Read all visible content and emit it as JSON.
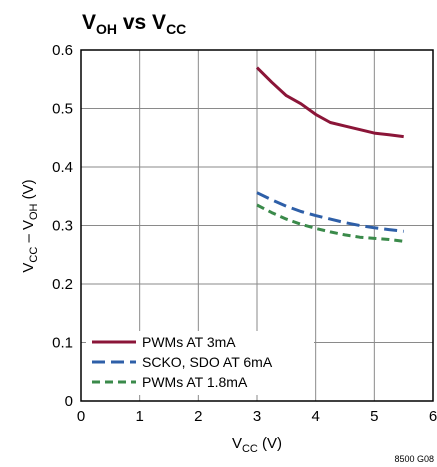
{
  "chart_data": {
    "type": "line",
    "title": "VOH vs VCC",
    "title_parts": {
      "base1": "V",
      "sub1": "OH",
      "mid": " vs ",
      "base2": "V",
      "sub2": "CC"
    },
    "xlabel": "VCC (V)",
    "xlabel_parts": {
      "base": "V",
      "sub": "CC",
      "tail": " (V)"
    },
    "ylabel": "VCC – VOH (V)",
    "ylabel_parts": {
      "b1": "V",
      "s1": "CC",
      "mid": " – V",
      "s2": "OH",
      "tail": " (V)"
    },
    "xlim": [
      0,
      6
    ],
    "ylim": [
      0,
      0.6
    ],
    "x_ticks": [
      "0",
      "1",
      "2",
      "3",
      "4",
      "5",
      "6"
    ],
    "y_ticks": [
      "0",
      "0.1",
      "0.2",
      "0.3",
      "0.4",
      "0.5",
      "0.6"
    ],
    "grid": true,
    "legend_position": "bottom-left",
    "series": [
      {
        "name": "PWMs AT 3mA",
        "color": "#8b1538",
        "style": "solid",
        "x": [
          3.0,
          3.25,
          3.5,
          3.75,
          4.0,
          4.25,
          4.5,
          4.75,
          5.0,
          5.25,
          5.5
        ],
        "y": [
          0.57,
          0.545,
          0.522,
          0.508,
          0.49,
          0.476,
          0.47,
          0.464,
          0.458,
          0.455,
          0.452
        ]
      },
      {
        "name": "SCKO, SDO AT 6mA",
        "color": "#2e5fa8",
        "style": "dash",
        "x": [
          3.0,
          3.25,
          3.5,
          3.75,
          4.0,
          4.25,
          4.5,
          4.75,
          5.0,
          5.25,
          5.5
        ],
        "y": [
          0.356,
          0.344,
          0.333,
          0.324,
          0.317,
          0.311,
          0.305,
          0.3,
          0.296,
          0.293,
          0.29
        ]
      },
      {
        "name": "PWMs AT 1.8mA",
        "color": "#3a8a4a",
        "style": "shortdash",
        "x": [
          3.0,
          3.25,
          3.5,
          3.75,
          4.0,
          4.25,
          4.5,
          4.75,
          5.0,
          5.25,
          5.5
        ],
        "y": [
          0.335,
          0.322,
          0.311,
          0.302,
          0.295,
          0.289,
          0.284,
          0.28,
          0.278,
          0.276,
          0.273
        ]
      }
    ]
  },
  "figure_code": "8500 G08"
}
